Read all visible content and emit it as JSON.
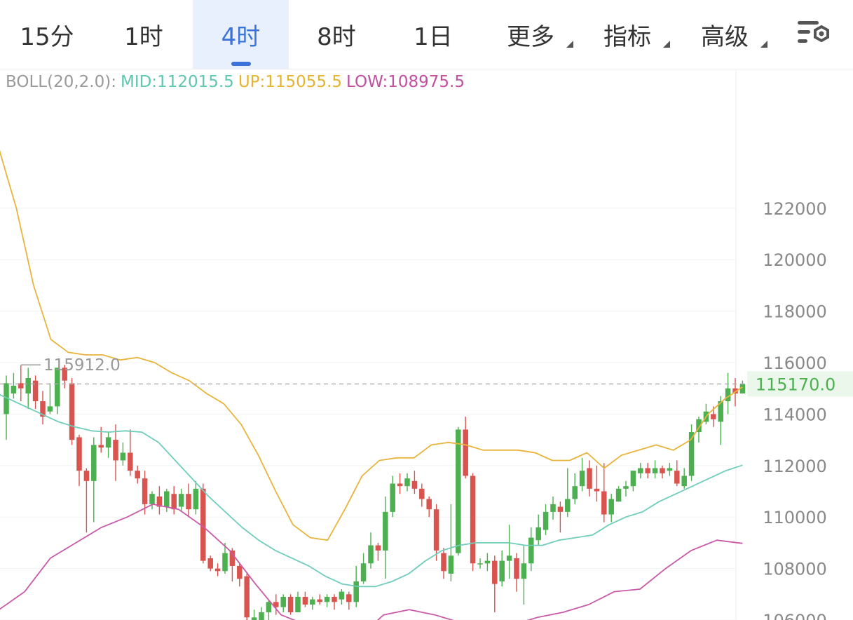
{
  "tabs": [
    {
      "label": "15分",
      "active": false,
      "dropdown": false
    },
    {
      "label": "1时",
      "active": false,
      "dropdown": false
    },
    {
      "label": "4时",
      "active": true,
      "dropdown": false
    },
    {
      "label": "8时",
      "active": false,
      "dropdown": false
    },
    {
      "label": "1日",
      "active": false,
      "dropdown": false
    },
    {
      "label": "更多",
      "active": false,
      "dropdown": true
    },
    {
      "label": "指标",
      "active": false,
      "dropdown": true
    },
    {
      "label": "高级",
      "active": false,
      "dropdown": true
    }
  ],
  "settings_icon": "chart-settings-icon",
  "legend": {
    "name": "BOLL(20,2.0):",
    "mid": "MID:112015.5",
    "up": "UP:115055.5",
    "low": "LOW:108975.5"
  },
  "colors": {
    "accent": "#3b73d8",
    "up_candle": "#4caf50",
    "down_candle": "#d9534f",
    "mid_line": "#6fcdb9",
    "upper_band": "#e8b43c",
    "lower_band": "#c95aa8",
    "last_price": "#4caf50"
  },
  "chart_data": {
    "type": "candlestick",
    "indicator": "BOLL(20,2.0)",
    "y_ticks": [
      106000,
      108000,
      110000,
      112000,
      114000,
      116000,
      118000,
      120000,
      122000
    ],
    "y_tick_labels": [
      "106000",
      "108000",
      "110000",
      "112000",
      "114000",
      "116000",
      "118000",
      "120000",
      "122000"
    ],
    "ylim": [
      105800,
      128000
    ],
    "last_price": 115170.0,
    "last_price_label": "115170.0",
    "max_marker": 115912.0,
    "max_marker_label": "115912.0",
    "candles": [
      [
        114000,
        115200,
        115500,
        113000
      ],
      [
        114800,
        115100,
        115600,
        114600
      ],
      [
        115200,
        115000,
        115900,
        114500
      ],
      [
        114800,
        115400,
        115800,
        114200
      ],
      [
        115300,
        114500,
        115500,
        114200
      ],
      [
        114500,
        113900,
        114900,
        113600
      ],
      [
        114100,
        114300,
        115200,
        114000
      ],
      [
        114300,
        115800,
        115800,
        114000
      ],
      [
        115800,
        115300,
        115912,
        115000
      ],
      [
        115200,
        113000,
        115400,
        112800
      ],
      [
        113100,
        111800,
        113200,
        111200
      ],
      [
        111800,
        111400,
        111900,
        109400
      ],
      [
        111400,
        112800,
        113100,
        109800
      ],
      [
        112800,
        112700,
        113500,
        112500
      ],
      [
        112700,
        113100,
        113300,
        112300
      ],
      [
        113000,
        112200,
        113600,
        111400
      ],
      [
        112200,
        112500,
        112900,
        112000
      ],
      [
        112500,
        111800,
        113400,
        111600
      ],
      [
        111800,
        111500,
        112000,
        111300
      ],
      [
        111500,
        110500,
        111800,
        110100
      ],
      [
        110500,
        110900,
        111000,
        110300
      ],
      [
        110800,
        110400,
        111200,
        110100
      ],
      [
        110400,
        111000,
        111100,
        110200
      ],
      [
        110900,
        110300,
        111200,
        110100
      ],
      [
        110400,
        110900,
        111100,
        110200
      ],
      [
        110900,
        110300,
        111300,
        110000
      ],
      [
        110300,
        111100,
        111400,
        110100
      ],
      [
        111100,
        108300,
        111300,
        108200
      ],
      [
        108400,
        108000,
        108500,
        107900
      ],
      [
        108000,
        107900,
        108200,
        107700
      ],
      [
        107900,
        108600,
        109000,
        107800
      ],
      [
        108700,
        108100,
        108800,
        107500
      ],
      [
        108100,
        107600,
        108200,
        107300
      ],
      [
        107700,
        106100,
        107800,
        105900
      ],
      [
        106000,
        106100,
        106400,
        105900
      ],
      [
        106000,
        106300,
        106500,
        105900
      ],
      [
        106300,
        106700,
        106800,
        105900
      ],
      [
        106700,
        106500,
        107000,
        106200
      ],
      [
        106500,
        106900,
        107000,
        106300
      ],
      [
        106900,
        106300,
        107000,
        106200
      ],
      [
        106300,
        106900,
        107100,
        106300
      ],
      [
        106900,
        106600,
        107100,
        106500
      ],
      [
        106600,
        106800,
        106900,
        106400
      ],
      [
        106800,
        106700,
        107000,
        106600
      ],
      [
        106700,
        106900,
        107000,
        106500
      ],
      [
        106900,
        106700,
        107000,
        106400
      ],
      [
        106800,
        107100,
        107200,
        106600
      ],
      [
        107000,
        106700,
        107100,
        106400
      ],
      [
        106700,
        107500,
        108100,
        106500
      ],
      [
        107500,
        108200,
        108600,
        107400
      ],
      [
        108200,
        108900,
        109400,
        108000
      ],
      [
        108900,
        108700,
        109000,
        108300
      ],
      [
        108700,
        110200,
        110800,
        107600
      ],
      [
        110200,
        111300,
        111600,
        110000
      ],
      [
        111300,
        111200,
        111700,
        110900
      ],
      [
        111200,
        111500,
        111700,
        111000
      ],
      [
        111400,
        111100,
        111800,
        110900
      ],
      [
        111100,
        110700,
        111300,
        110400
      ],
      [
        110700,
        110300,
        110800,
        110000
      ],
      [
        110300,
        108700,
        110500,
        108300
      ],
      [
        108600,
        107900,
        108800,
        107600
      ],
      [
        107800,
        108500,
        110500,
        107500
      ],
      [
        108600,
        113400,
        113500,
        108500
      ],
      [
        113400,
        111600,
        113900,
        111500
      ],
      [
        111600,
        108200,
        111700,
        107900
      ],
      [
        108200,
        108200,
        108400,
        108000
      ],
      [
        108200,
        108300,
        108600,
        107900
      ],
      [
        108300,
        107400,
        108500,
        106300
      ],
      [
        107500,
        108300,
        108700,
        107300
      ],
      [
        108300,
        108500,
        109700,
        107600
      ],
      [
        108400,
        107600,
        108600,
        107100
      ],
      [
        107600,
        108200,
        108900,
        106600
      ],
      [
        108200,
        109200,
        109600,
        107900
      ],
      [
        109100,
        109600,
        110100,
        108900
      ],
      [
        109500,
        110200,
        110500,
        109300
      ],
      [
        110200,
        110500,
        110800,
        109900
      ],
      [
        110400,
        110200,
        110600,
        109400
      ],
      [
        110200,
        110700,
        111900,
        110000
      ],
      [
        110700,
        111200,
        111700,
        110500
      ],
      [
        111200,
        111800,
        112300,
        111000
      ],
      [
        111900,
        111100,
        112200,
        110800
      ],
      [
        111100,
        111000,
        112000,
        110600
      ],
      [
        111000,
        110100,
        112100,
        109800
      ],
      [
        110100,
        110700,
        110900,
        109800
      ],
      [
        110600,
        111100,
        111200,
        110600
      ],
      [
        111100,
        111200,
        111400,
        110800
      ],
      [
        111200,
        111800,
        111800,
        111000
      ],
      [
        111700,
        111900,
        112100,
        111500
      ],
      [
        111900,
        111700,
        112100,
        111500
      ],
      [
        111700,
        111900,
        112200,
        111500
      ],
      [
        111900,
        111700,
        112000,
        111500
      ],
      [
        111800,
        111900,
        112100,
        111600
      ],
      [
        111800,
        111300,
        112200,
        111200
      ],
      [
        111200,
        111600,
        111900,
        111100
      ],
      [
        111600,
        113300,
        113600,
        111400
      ],
      [
        113300,
        113800,
        113900,
        112900
      ],
      [
        113700,
        114100,
        114400,
        113600
      ],
      [
        114000,
        113800,
        114300,
        113500
      ],
      [
        113700,
        114500,
        114700,
        112800
      ],
      [
        114500,
        115000,
        115600,
        114000
      ],
      [
        115000,
        114800,
        115400,
        114300
      ],
      [
        114800,
        115170,
        115300,
        114900
      ]
    ],
    "boll": {
      "mid": [
        114900,
        114600,
        114300,
        114000,
        113700,
        113500,
        113350,
        113300,
        113350,
        113300,
        112900,
        112200,
        111500,
        110800,
        110200,
        109600,
        109100,
        108700,
        108400,
        108100,
        107700,
        107400,
        107300,
        107300,
        107500,
        107800,
        108300,
        108700,
        108900,
        109000,
        109000,
        109000,
        108900,
        108900,
        109100,
        109200,
        109300,
        109700,
        110000,
        110200,
        110600,
        110900,
        111200,
        111500,
        111800,
        112015.5
      ],
      "up": [
        124300,
        122000,
        119000,
        116900,
        116400,
        116300,
        116300,
        116100,
        116200,
        116000,
        115600,
        115300,
        114800,
        114400,
        113600,
        112400,
        111000,
        109700,
        109200,
        109100,
        110300,
        111600,
        112200,
        112300,
        112300,
        112800,
        112900,
        112800,
        112600,
        112600,
        112600,
        112500,
        112200,
        112200,
        112500,
        111900,
        112400,
        112600,
        112800,
        112600,
        113000,
        114000,
        114600,
        115055.5
      ],
      "low": [
        106400,
        107100,
        108400,
        109000,
        109600,
        110000,
        110500,
        110300,
        109600,
        108700,
        107400,
        106200,
        105800,
        104900,
        105300,
        106200,
        106400,
        106200,
        105900,
        105700,
        105800,
        106100,
        106300,
        106600,
        107100,
        107200,
        108000,
        108700,
        109100,
        108975.5
      ]
    }
  }
}
